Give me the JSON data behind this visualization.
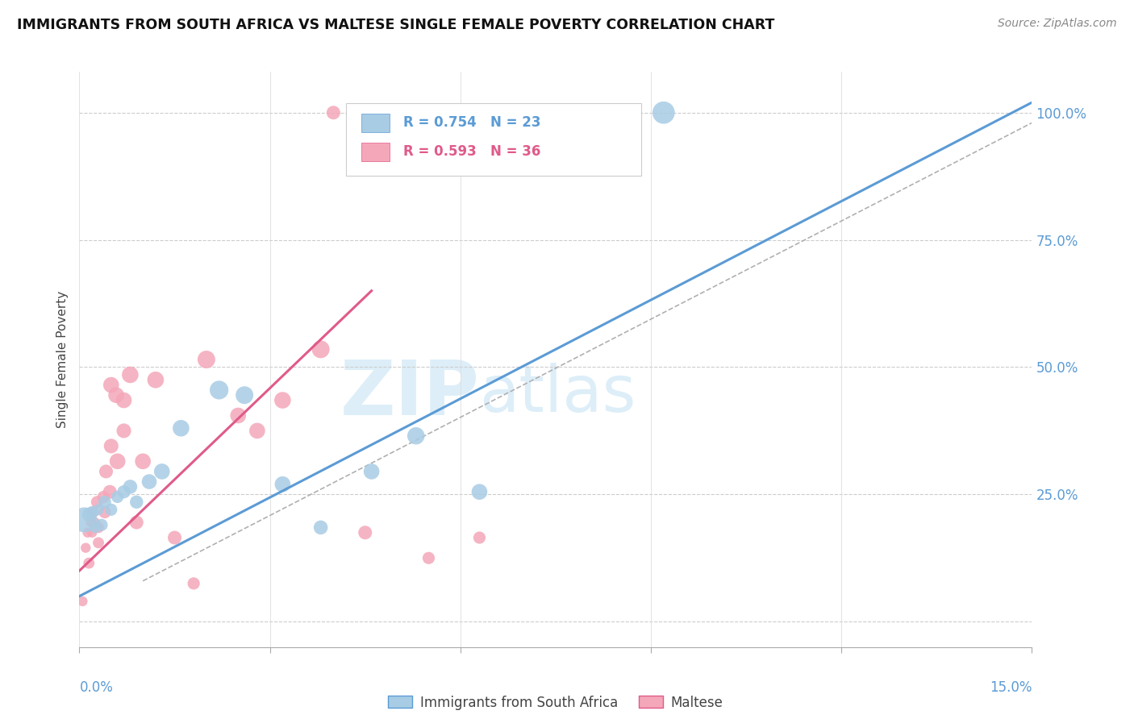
{
  "title": "IMMIGRANTS FROM SOUTH AFRICA VS MALTESE SINGLE FEMALE POVERTY CORRELATION CHART",
  "source": "Source: ZipAtlas.com",
  "ylabel": "Single Female Poverty",
  "y_ticks": [
    0.0,
    0.25,
    0.5,
    0.75,
    1.0
  ],
  "y_tick_labels": [
    "",
    "25.0%",
    "50.0%",
    "75.0%",
    "100.0%"
  ],
  "x_ticks": [
    0.0,
    0.03,
    0.06,
    0.09,
    0.12,
    0.15
  ],
  "xlim": [
    0.0,
    0.15
  ],
  "ylim": [
    -0.05,
    1.08
  ],
  "color_blue": "#a8cce4",
  "color_blue_edge": "#5b9bd5",
  "color_pink": "#f4a7b9",
  "color_pink_edge": "#e05a8a",
  "color_line_blue": "#5b9bd5",
  "color_line_pink": "#e05a8a",
  "color_diag": "#b0b0b0",
  "color_right_axis": "#5b9bd5",
  "watermark_color": "#ddeef8",
  "blue_line_x": [
    0.0,
    0.15
  ],
  "blue_line_y": [
    0.05,
    1.02
  ],
  "pink_line_x": [
    0.0,
    0.046
  ],
  "pink_line_y": [
    0.1,
    0.65
  ],
  "diag_line_x": [
    0.01,
    0.15
  ],
  "diag_line_y": [
    0.08,
    0.98
  ],
  "blue_scatter_x": [
    0.0008,
    0.0015,
    0.002,
    0.0025,
    0.003,
    0.0035,
    0.004,
    0.005,
    0.006,
    0.007,
    0.008,
    0.009,
    0.011,
    0.013,
    0.016,
    0.022,
    0.026,
    0.032,
    0.038,
    0.046,
    0.053,
    0.063,
    0.092
  ],
  "blue_scatter_y": [
    0.2,
    0.21,
    0.215,
    0.185,
    0.22,
    0.19,
    0.235,
    0.22,
    0.245,
    0.255,
    0.265,
    0.235,
    0.275,
    0.295,
    0.38,
    0.455,
    0.445,
    0.27,
    0.185,
    0.295,
    0.365,
    0.255,
    1.0
  ],
  "blue_scatter_s": [
    500,
    150,
    120,
    100,
    100,
    120,
    130,
    120,
    120,
    140,
    160,
    140,
    180,
    200,
    220,
    280,
    250,
    200,
    160,
    200,
    240,
    200,
    400
  ],
  "pink_scatter_x": [
    0.0005,
    0.001,
    0.0013,
    0.002,
    0.0022,
    0.0015,
    0.0018,
    0.003,
    0.003,
    0.0025,
    0.0028,
    0.004,
    0.0038,
    0.0042,
    0.005,
    0.005,
    0.0048,
    0.006,
    0.0058,
    0.007,
    0.007,
    0.008,
    0.009,
    0.01,
    0.012,
    0.015,
    0.018,
    0.02,
    0.025,
    0.028,
    0.032,
    0.038,
    0.045,
    0.055,
    0.063,
    0.04
  ],
  "pink_scatter_y": [
    0.04,
    0.145,
    0.175,
    0.175,
    0.215,
    0.115,
    0.195,
    0.185,
    0.155,
    0.195,
    0.235,
    0.215,
    0.245,
    0.295,
    0.465,
    0.345,
    0.255,
    0.315,
    0.445,
    0.435,
    0.375,
    0.485,
    0.195,
    0.315,
    0.475,
    0.165,
    0.075,
    0.515,
    0.405,
    0.375,
    0.435,
    0.535,
    0.175,
    0.125,
    0.165,
    1.0
  ],
  "pink_scatter_s": [
    80,
    80,
    80,
    80,
    100,
    100,
    80,
    100,
    100,
    80,
    120,
    120,
    120,
    150,
    200,
    170,
    150,
    200,
    200,
    200,
    170,
    220,
    150,
    200,
    220,
    150,
    120,
    250,
    200,
    200,
    220,
    250,
    150,
    120,
    120,
    150
  ]
}
